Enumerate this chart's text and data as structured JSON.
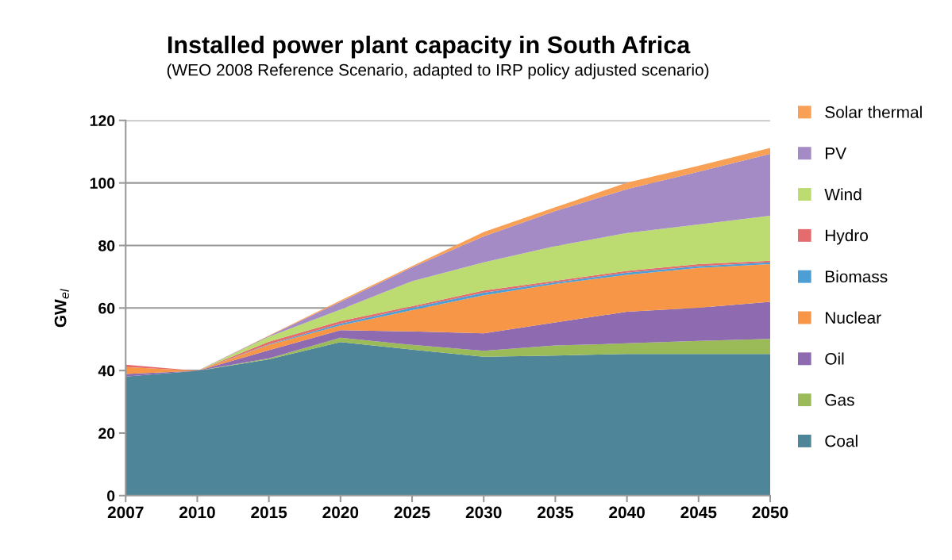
{
  "chart_data": {
    "type": "area",
    "stacked": true,
    "title": "Installed power plant capacity in South Africa",
    "subtitle": "(WEO 2008 Reference Scenario, adapted to IRP policy adjusted scenario)",
    "ylabel": "GW$_{el}$",
    "categories": [
      "2007",
      "2010",
      "2015",
      "2020",
      "2025",
      "2030",
      "2035",
      "2040",
      "2045",
      "2050"
    ],
    "ylim": [
      0,
      120
    ],
    "yticks": [
      0,
      20,
      40,
      60,
      80,
      100,
      120
    ],
    "grid": "y",
    "legend": "right",
    "series": [
      {
        "name": "Coal",
        "color": "#4f8599",
        "values": [
          38.1,
          39.9,
          43.6,
          49.1,
          46.7,
          44.4,
          44.8,
          45.3,
          45.3,
          45.3
        ]
      },
      {
        "name": "Gas",
        "color": "#9bbb59",
        "values": [
          0,
          0,
          0.3,
          1.4,
          1.5,
          1.9,
          3.2,
          3.4,
          4.2,
          4.8
        ]
      },
      {
        "name": "Oil",
        "color": "#8e6bb0",
        "values": [
          0.8,
          0,
          2.6,
          2.4,
          4.3,
          5.6,
          7.4,
          10.1,
          10.6,
          11.9
        ]
      },
      {
        "name": "Nuclear",
        "color": "#f79646",
        "values": [
          2.2,
          0,
          1.7,
          1.5,
          6.8,
          12.2,
          12.3,
          11.8,
          12.7,
          12.0
        ]
      },
      {
        "name": "Biomass",
        "color": "#4b9fd5",
        "values": [
          0,
          0,
          0.2,
          0.6,
          0.8,
          0.8,
          0.5,
          0.7,
          0.6,
          0.6
        ]
      },
      {
        "name": "Hydro",
        "color": "#e46c6c",
        "values": [
          0.8,
          0,
          0.8,
          0.8,
          0.5,
          0.7,
          0.5,
          0.6,
          0.6,
          0.5
        ]
      },
      {
        "name": "Wind",
        "color": "#bcdc72",
        "values": [
          0,
          0,
          1.6,
          3.7,
          8.0,
          9.0,
          11.1,
          12.1,
          12.7,
          14.4
        ]
      },
      {
        "name": "PV",
        "color": "#a58bc6",
        "values": [
          0,
          0,
          0.3,
          2.5,
          4.4,
          8.3,
          11.2,
          14.0,
          16.9,
          19.8
        ]
      },
      {
        "name": "Solar thermal",
        "color": "#f8a056",
        "values": [
          0,
          0,
          0.1,
          0.4,
          0.4,
          1.4,
          1.2,
          2.1,
          1.9,
          1.9
        ]
      }
    ]
  }
}
